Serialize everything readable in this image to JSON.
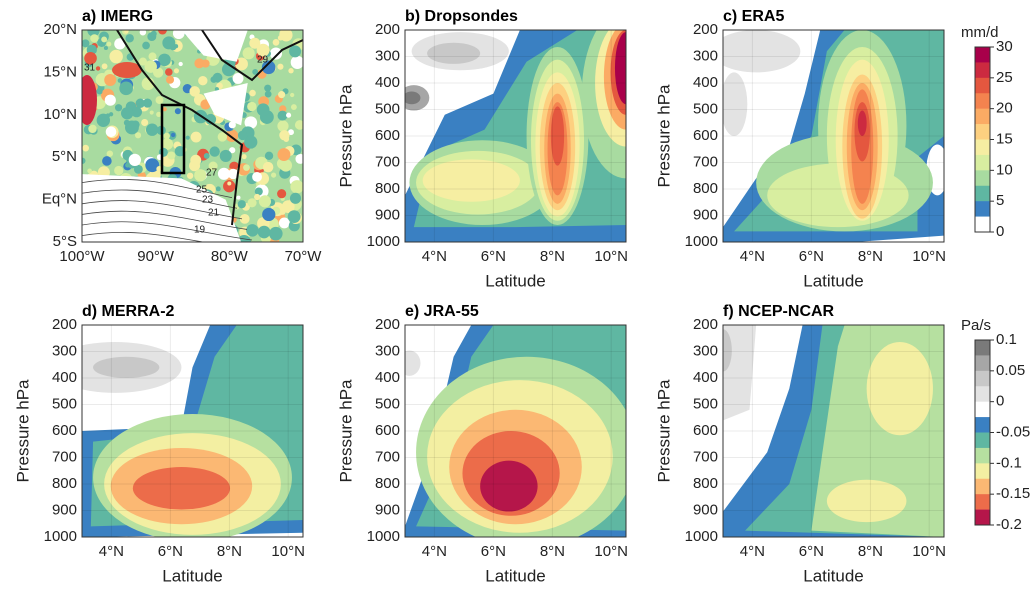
{
  "map": {
    "title": "a) IMERG",
    "xticks": [
      "100°W",
      "90°W",
      "80°W",
      "70°W"
    ],
    "yticks": [
      "20°N",
      "15°N",
      "10°N",
      "5°N",
      "Eq°N",
      "5°S"
    ],
    "contour_labels": [
      "31",
      "29",
      "27",
      "25",
      "23",
      "21",
      "19"
    ]
  },
  "panels": [
    {
      "title": "b) Dropsondes",
      "xlabel": "Latitude",
      "ylabel": "Pressure hPa",
      "xticks": [
        "4°N",
        "6°N",
        "8°N",
        "10°N"
      ],
      "yticks": [
        200,
        300,
        400,
        500,
        600,
        700,
        800,
        900,
        1000
      ]
    },
    {
      "title": "c) ERA5",
      "xlabel": "Latitude",
      "ylabel": "Pressure hPa",
      "xticks": [
        "4°N",
        "6°N",
        "8°N",
        "10°N"
      ],
      "yticks": [
        200,
        300,
        400,
        500,
        600,
        700,
        800,
        900,
        1000
      ]
    },
    {
      "title": "d) MERRA-2",
      "xlabel": "Latitude",
      "ylabel": "Pressure hPa",
      "xticks": [
        "4°N",
        "6°N",
        "8°N",
        "10°N"
      ],
      "yticks": [
        200,
        300,
        400,
        500,
        600,
        700,
        800,
        900,
        1000
      ]
    },
    {
      "title": "e) JRA-55",
      "xlabel": "Latitude",
      "ylabel": "Pressure hPa",
      "xticks": [
        "4°N",
        "6°N",
        "8°N",
        "10°N"
      ],
      "yticks": [
        200,
        300,
        400,
        500,
        600,
        700,
        800,
        900,
        1000
      ]
    },
    {
      "title": "f) NCEP-NCAR",
      "xlabel": "Latitude",
      "ylabel": "Pressure hPa",
      "xticks": [
        "4°N",
        "6°N",
        "8°N",
        "10°N"
      ],
      "yticks": [
        200,
        300,
        400,
        500,
        600,
        700,
        800,
        900,
        1000
      ]
    }
  ],
  "colorbars": [
    {
      "unit": "mm/d",
      "ticks": [
        30,
        25,
        20,
        15,
        10,
        5,
        0
      ],
      "colors": [
        "#a8004a",
        "#cc2a40",
        "#e4573f",
        "#f4834f",
        "#fbab64",
        "#fdd080",
        "#f6eea2",
        "#d8eea0",
        "#a8dba0",
        "#5fb7a2",
        "#3a80c2",
        "#ffffff"
      ]
    },
    {
      "unit": "Pa/s",
      "ticks": [
        0.1,
        0.05,
        0,
        -0.05,
        -0.1,
        -0.15,
        -0.2
      ],
      "colors": [
        "#7a7a7a",
        "#a6a6a6",
        "#c8c8c8",
        "#e3e3e3",
        "#ffffff",
        "#3a80c2",
        "#5fb7a2",
        "#b6e0a0",
        "#f3efa2",
        "#fbb873",
        "#ec6c4a",
        "#b5164a"
      ]
    }
  ]
}
